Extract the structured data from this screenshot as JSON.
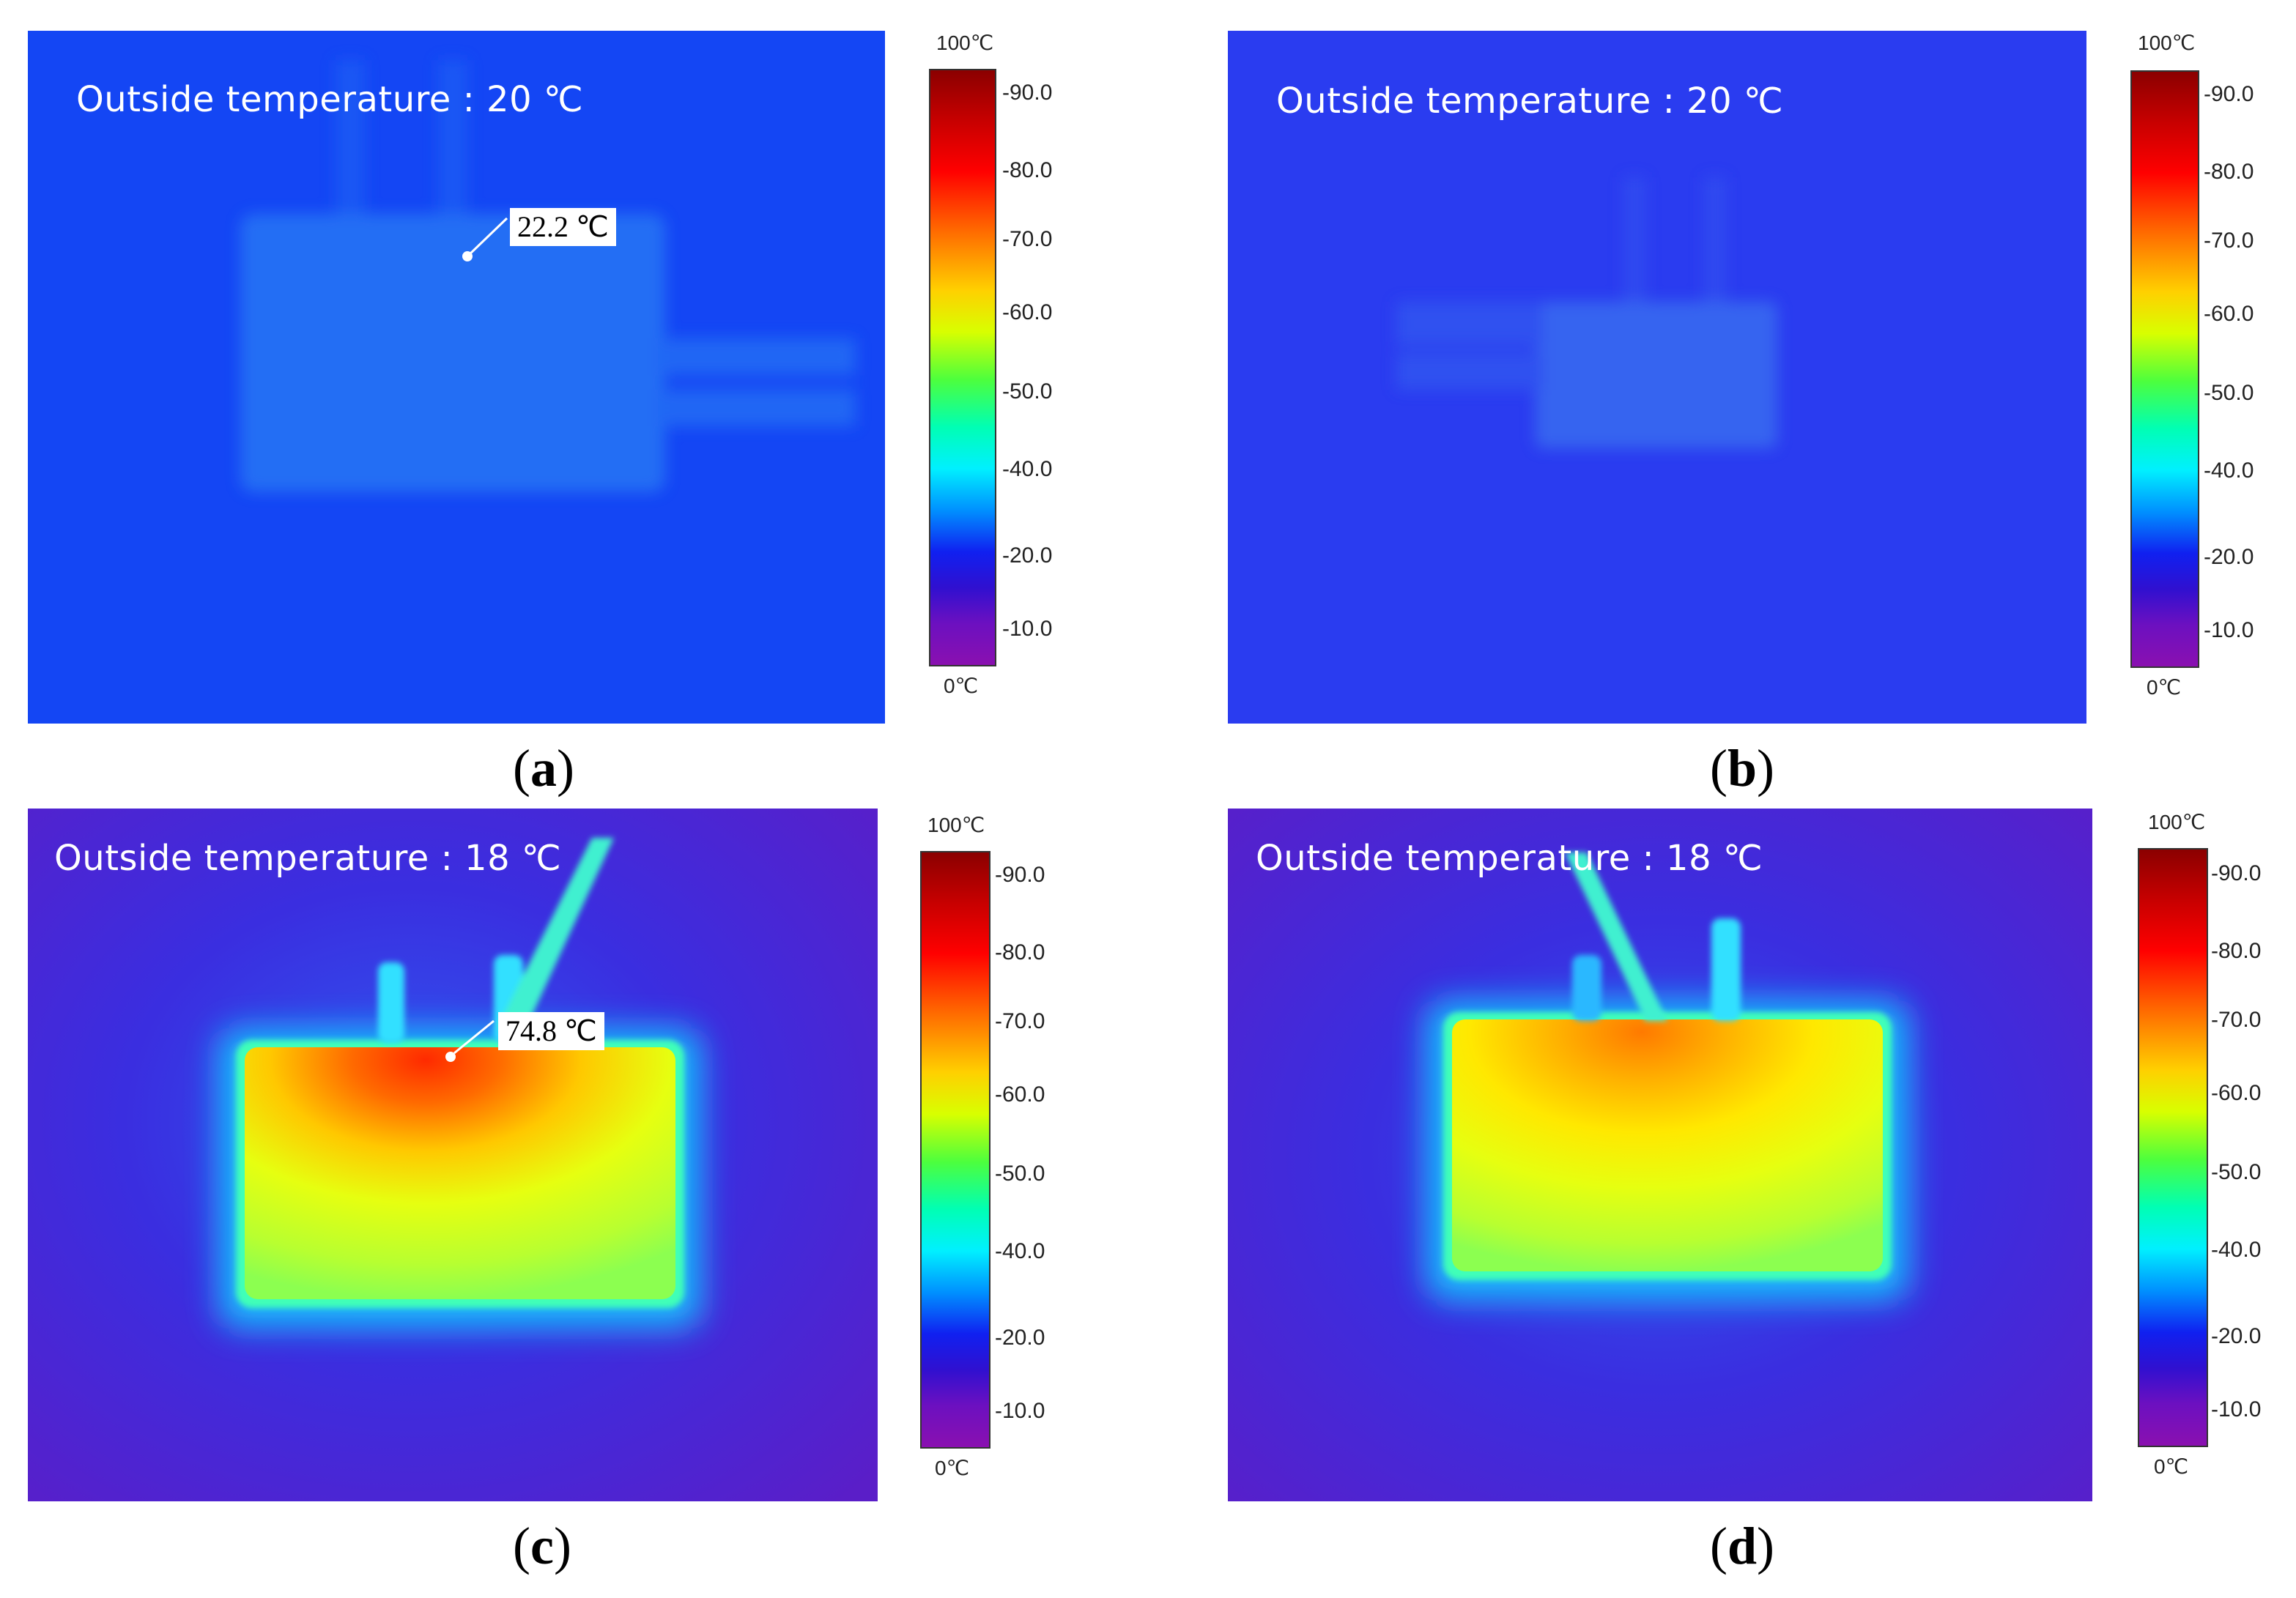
{
  "panels": [
    {
      "id": "a",
      "caption_letter": "a",
      "outside_label": "Outside temperature : 20 ℃",
      "marker_text": "22.2 ℃",
      "scale": {
        "top": "100℃",
        "bottom": "0℃",
        "ticks": [
          "-90.0",
          "-80.0",
          "-70.0",
          "-60.0",
          "-50.0",
          "-40.0",
          "-20.0",
          "-10.0"
        ]
      }
    },
    {
      "id": "b",
      "caption_letter": "b",
      "outside_label": "Outside temperature : 20 ℃",
      "marker_text": "",
      "scale": {
        "top": "100℃",
        "bottom": "0℃",
        "ticks": [
          "-90.0",
          "-80.0",
          "-70.0",
          "-60.0",
          "-50.0",
          "-40.0",
          "-20.0",
          "-10.0"
        ]
      }
    },
    {
      "id": "c",
      "caption_letter": "c",
      "outside_label": "Outside temperature : 18 ℃",
      "marker_text": "74.8 ℃",
      "scale": {
        "top": "100℃",
        "bottom": "0℃",
        "ticks": [
          "-90.0",
          "-80.0",
          "-70.0",
          "-60.0",
          "-50.0",
          "-40.0",
          "-20.0",
          "-10.0"
        ]
      }
    },
    {
      "id": "d",
      "caption_letter": "d",
      "outside_label": "Outside temperature : 18 ℃",
      "marker_text": "",
      "scale": {
        "top": "100℃",
        "bottom": "0℃",
        "ticks": [
          "-90.0",
          "-80.0",
          "-70.0",
          "-60.0",
          "-50.0",
          "-40.0",
          "-20.0",
          "-10.0"
        ]
      }
    }
  ],
  "colors": {
    "cold_background_a": "#1446f4",
    "cold_background_b": "#2a3cf0",
    "warm_background": "#4a1fd8",
    "hot_core": "#ff5a00",
    "warm_body": "#d6ff1a"
  }
}
